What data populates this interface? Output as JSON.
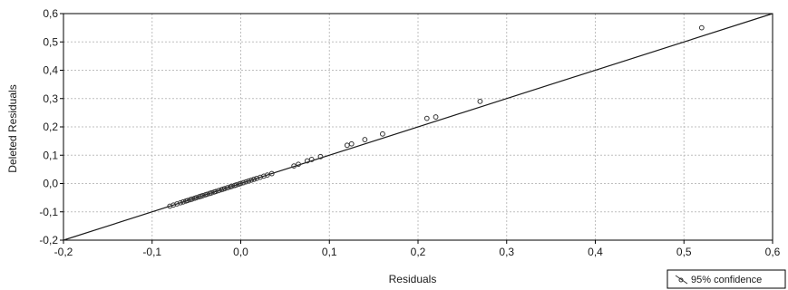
{
  "chart_data": {
    "type": "scatter",
    "title": "",
    "xlabel": "Residuals",
    "ylabel": "Deleted Residuals",
    "xlim": [
      -0.2,
      0.6
    ],
    "ylim": [
      -0.2,
      0.6
    ],
    "x_ticks": [
      "-0,2",
      "-0,1",
      "0,0",
      "0,1",
      "0,2",
      "0,3",
      "0,4",
      "0,5",
      "0,6"
    ],
    "y_ticks": [
      "-0,2",
      "-0,1",
      "0,0",
      "0,1",
      "0,2",
      "0,3",
      "0,4",
      "0,5",
      "0,6"
    ],
    "grid": true,
    "legend_position": "bottom-right",
    "legend_label": "95% confidence",
    "series": [
      {
        "kind": "points",
        "x": [
          -0.08,
          -0.076,
          -0.072,
          -0.068,
          -0.065,
          -0.062,
          -0.06,
          -0.057,
          -0.055,
          -0.052,
          -0.05,
          -0.047,
          -0.045,
          -0.043,
          -0.04,
          -0.038,
          -0.035,
          -0.033,
          -0.03,
          -0.028,
          -0.025,
          -0.022,
          -0.02,
          -0.018,
          -0.015,
          -0.012,
          -0.01,
          -0.007,
          -0.005,
          -0.002,
          0.0,
          0.003,
          0.006,
          0.009,
          0.012,
          0.015,
          0.018,
          0.022,
          0.026,
          0.03,
          0.035,
          0.06,
          0.065,
          0.075,
          0.08,
          0.09,
          0.12,
          0.125,
          0.14,
          0.16,
          0.21,
          0.22,
          0.27,
          0.52
        ],
        "y": [
          -0.08,
          -0.076,
          -0.072,
          -0.068,
          -0.065,
          -0.062,
          -0.06,
          -0.057,
          -0.055,
          -0.052,
          -0.05,
          -0.047,
          -0.045,
          -0.043,
          -0.04,
          -0.038,
          -0.035,
          -0.033,
          -0.03,
          -0.028,
          -0.025,
          -0.022,
          -0.02,
          -0.018,
          -0.015,
          -0.012,
          -0.01,
          -0.007,
          -0.005,
          -0.002,
          0.0,
          0.003,
          0.006,
          0.009,
          0.012,
          0.015,
          0.018,
          0.022,
          0.026,
          0.03,
          0.035,
          0.062,
          0.068,
          0.08,
          0.085,
          0.095,
          0.135,
          0.14,
          0.155,
          0.175,
          0.23,
          0.235,
          0.29,
          0.55
        ]
      },
      {
        "kind": "line",
        "x": [
          -0.2,
          0.6
        ],
        "y": [
          -0.2,
          0.63
        ]
      }
    ],
    "colors": {
      "plot_border": "#000000",
      "grid": "#bfbfbf",
      "points": "#333333",
      "line": "#1a1a1a"
    }
  }
}
